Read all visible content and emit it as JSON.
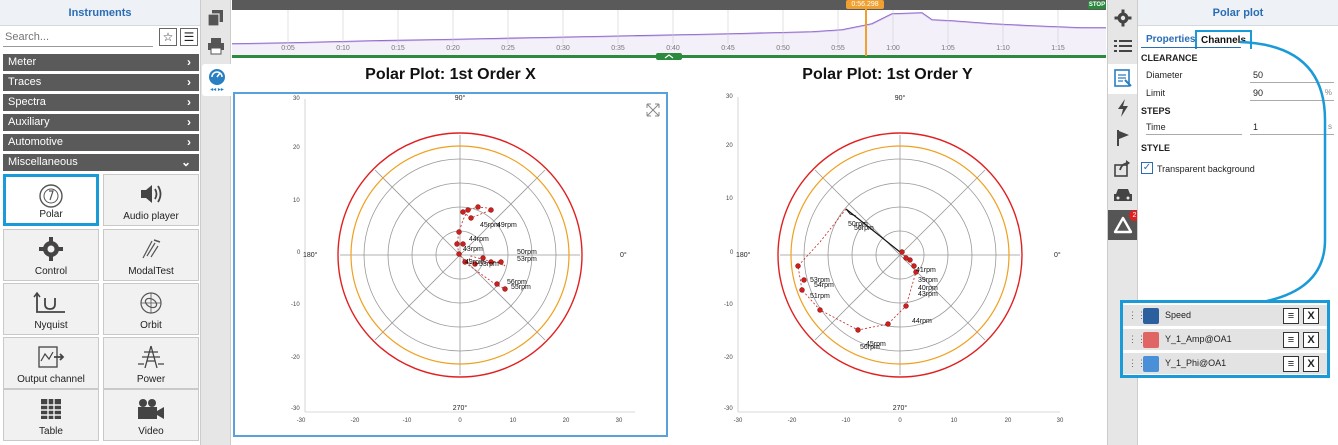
{
  "left_panel": {
    "title": "Instruments",
    "search_placeholder": "Search...",
    "categories": [
      {
        "label": "Meter",
        "expanded": false
      },
      {
        "label": "Traces",
        "expanded": false
      },
      {
        "label": "Spectra",
        "expanded": false
      },
      {
        "label": "Auxiliary",
        "expanded": false
      },
      {
        "label": "Automotive",
        "expanded": false
      },
      {
        "label": "Miscellaneous",
        "expanded": true
      }
    ],
    "tiles": [
      {
        "label": "Polar",
        "icon": "polar-icon",
        "selected": true
      },
      {
        "label": "Audio player",
        "icon": "speaker-icon"
      },
      {
        "label": "Control",
        "icon": "gear-icon"
      },
      {
        "label": "ModalTest",
        "icon": "modal-test-icon"
      },
      {
        "label": "Nyquist",
        "icon": "nyquist-icon"
      },
      {
        "label": "Orbit",
        "icon": "orbit-icon"
      },
      {
        "label": "Output channel",
        "icon": "output-channel-icon"
      },
      {
        "label": "Power",
        "icon": "power-tower-icon"
      },
      {
        "label": "Table",
        "icon": "table-icon"
      },
      {
        "label": "Video",
        "icon": "video-camera-icon"
      }
    ]
  },
  "timeline": {
    "cursor_time": "0:56.298",
    "stop_label": "STOP",
    "ticks": [
      "0:05",
      "0:10",
      "0:15",
      "0:20",
      "0:25",
      "0:30",
      "0:35",
      "0:40",
      "0:45",
      "0:50",
      "0:55",
      "1:00",
      "1:05",
      "1:10",
      "1:15"
    ]
  },
  "plots": [
    {
      "title": "Polar Plot: 1st Order X",
      "angle_labels": {
        "top": "90°",
        "bottom": "270°",
        "left": "180°",
        "right": "0°"
      },
      "y_ticks": [
        "30",
        "20",
        "10",
        "0",
        "-10",
        "-20",
        "-30"
      ],
      "x_ticks": [
        "-30",
        "-20",
        "-10",
        "0",
        "10",
        "20",
        "30"
      ],
      "point_labels": [
        "45rpm",
        "49rpm",
        "44rpm",
        "43rpm",
        "49rpm",
        "50rpm",
        "53rpm",
        "56rpm",
        "55rpm",
        "53rpm"
      ]
    },
    {
      "title": "Polar Plot: 1st Order Y",
      "angle_labels": {
        "top": "90°",
        "bottom": "270°",
        "left": "180°",
        "right": "0°"
      },
      "y_ticks": [
        "30",
        "20",
        "10",
        "0",
        "-10",
        "-20",
        "-30"
      ],
      "x_ticks": [
        "-30",
        "-20",
        "-10",
        "0",
        "10",
        "20",
        "30"
      ],
      "point_labels": [
        "50rpm",
        "56rpm",
        "53rpm",
        "54rpm",
        "51rpm",
        "39rpm",
        "40rpm",
        "43rpm",
        "41rpm",
        "44rpm",
        "45rpm",
        "56rpm"
      ]
    }
  ],
  "right_panel": {
    "title": "Polar plot",
    "tabs": [
      "Properties",
      "Channels"
    ],
    "active_tab": "Channels",
    "clearance_header": "CLEARANCE",
    "diameter_label": "Diameter",
    "diameter_value": "50",
    "limit_label": "Limit",
    "limit_value": "90",
    "limit_unit": "%",
    "steps_header": "STEPS",
    "time_label": "Time",
    "time_value": "1",
    "time_unit": "s",
    "style_header": "STYLE",
    "transparent_label": "Transparent background",
    "transparent_checked": true,
    "channels": [
      {
        "name": "Speed",
        "color": "#2c5f9e"
      },
      {
        "name": "Y_1_Amp@OA1",
        "color": "#e06666"
      },
      {
        "name": "Y_1_Phi@OA1",
        "color": "#4a90d9"
      }
    ]
  },
  "badge_count": "2"
}
